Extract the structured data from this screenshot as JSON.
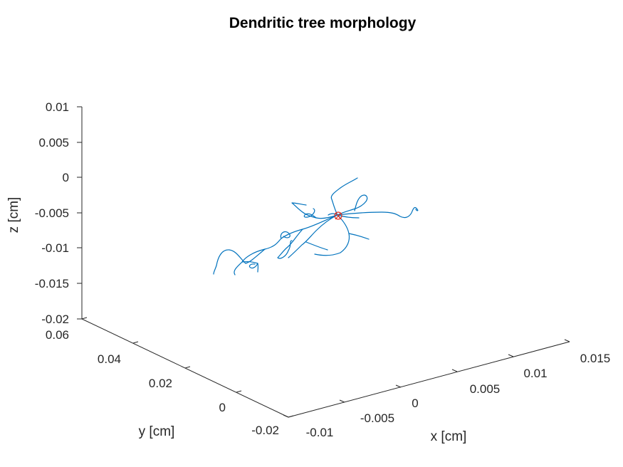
{
  "chart_data": {
    "type": "line",
    "title": "Dendritic tree morphology",
    "xlabel": "x [cm]",
    "ylabel": "y [cm]",
    "zlabel": "z [cm]",
    "xlim": [
      -0.01,
      0.015
    ],
    "ylim": [
      -0.02,
      0.06
    ],
    "zlim": [
      -0.02,
      0.01
    ],
    "x_ticks": [
      "-0.01",
      "-0.005",
      "0",
      "0.005",
      "0.01",
      "0.015"
    ],
    "y_ticks": [
      "-0.02",
      "0",
      "0.02",
      "0.04",
      "0.06"
    ],
    "z_ticks": [
      "-0.02",
      "-0.015",
      "-0.01",
      "-0.005",
      "0",
      "0.005",
      "0.01"
    ],
    "grid": false,
    "soma_color": "#e03020",
    "dendrite_color": "#0072bd"
  }
}
